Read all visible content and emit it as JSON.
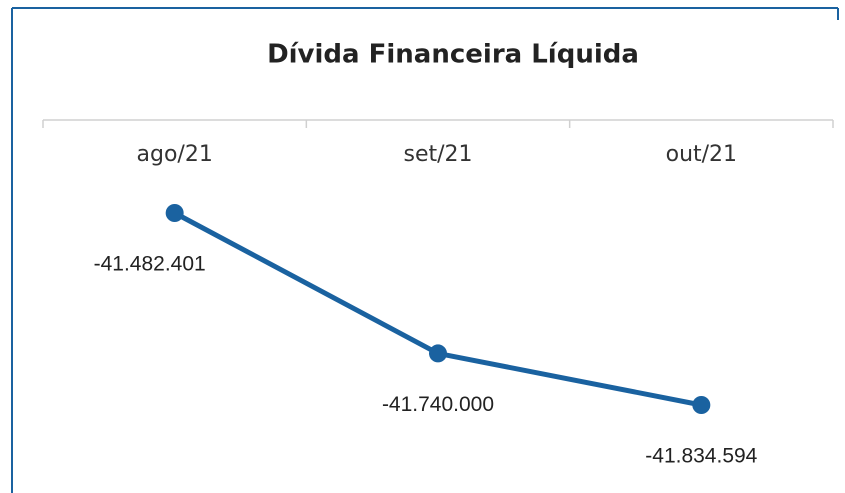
{
  "chart_data": {
    "type": "line",
    "title": "Dívida Financeira Líquida",
    "categories": [
      "ago/21",
      "set/21",
      "out/21"
    ],
    "series": [
      {
        "name": null,
        "color": "#1a62a0",
        "values": [
          -41482401,
          -41740000,
          -41834594
        ],
        "value_labels": [
          "-41.482.401",
          "-41.740.000",
          "-41.834.594"
        ]
      }
    ]
  }
}
